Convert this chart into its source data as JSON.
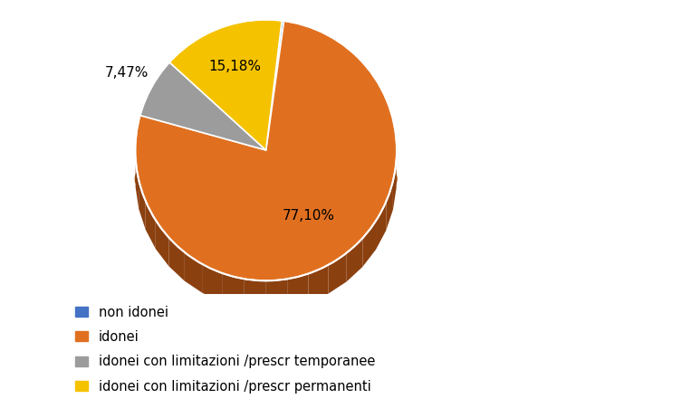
{
  "labels": [
    "non idonei",
    "idonei",
    "idonei con limitazioni /prescr temporanee",
    "idonei con limitazioni /prescr permanenti"
  ],
  "values": [
    0.26,
    77.1,
    7.47,
    15.18
  ],
  "colors": [
    "#4472C4",
    "#E07020",
    "#9C9C9C",
    "#F5C200"
  ],
  "shadow_colors": [
    "#3A5A9A",
    "#8B4010",
    "#5A5A5A",
    "#A08000"
  ],
  "background_color": "#FFFFFF",
  "autopct_fontsize": 11,
  "legend_fontsize": 10.5,
  "startangle": 83,
  "shadow_depth": 18,
  "shadow_color_main": "#A0500A"
}
